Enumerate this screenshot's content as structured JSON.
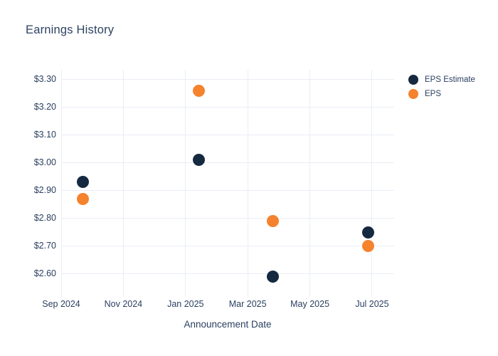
{
  "chart_data": {
    "type": "scatter",
    "title": "Earnings History",
    "xlabel": "Announcement Date",
    "ylabel": "",
    "grid": true,
    "legend_position": "right",
    "grid_color": "#e9edf5",
    "text_color": "#2a3f5f",
    "title_color": "#2e4262",
    "x_range_months": [
      0,
      10.71
    ],
    "y_range": [
      2.53,
      3.335
    ],
    "x_ticks": [
      {
        "m": 0,
        "label": "Sep 2024"
      },
      {
        "m": 2,
        "label": "Nov 2024"
      },
      {
        "m": 4,
        "label": "Jan 2025"
      },
      {
        "m": 6,
        "label": "Mar 2025"
      },
      {
        "m": 8,
        "label": "May 2025"
      },
      {
        "m": 10,
        "label": "Jul 2025"
      }
    ],
    "y_ticks": [
      {
        "v": 3.3,
        "label": "$3.30"
      },
      {
        "v": 3.2,
        "label": "$3.20"
      },
      {
        "v": 3.1,
        "label": "$3.10"
      },
      {
        "v": 3.0,
        "label": "$3.00"
      },
      {
        "v": 2.9,
        "label": "$2.90"
      },
      {
        "v": 2.8,
        "label": "$2.80"
      },
      {
        "v": 2.7,
        "label": "$2.70"
      },
      {
        "v": 2.6,
        "label": "$2.60"
      }
    ],
    "series": [
      {
        "name": "EPS Estimate",
        "color": "#152940",
        "points": [
          {
            "date": "2024-09-20",
            "x_months": 0.69,
            "y": 2.93
          },
          {
            "date": "2025-01-14",
            "x_months": 4.43,
            "y": 3.01
          },
          {
            "date": "2025-03-25",
            "x_months": 6.8,
            "y": 2.59
          },
          {
            "date": "2025-06-28",
            "x_months": 9.87,
            "y": 2.75
          }
        ]
      },
      {
        "name": "EPS",
        "color": "#f5822d",
        "points": [
          {
            "date": "2024-09-20",
            "x_months": 0.69,
            "y": 2.87
          },
          {
            "date": "2025-01-14",
            "x_months": 4.43,
            "y": 3.26
          },
          {
            "date": "2025-03-25",
            "x_months": 6.8,
            "y": 2.79
          },
          {
            "date": "2025-06-28",
            "x_months": 9.87,
            "y": 2.7
          }
        ]
      }
    ]
  }
}
